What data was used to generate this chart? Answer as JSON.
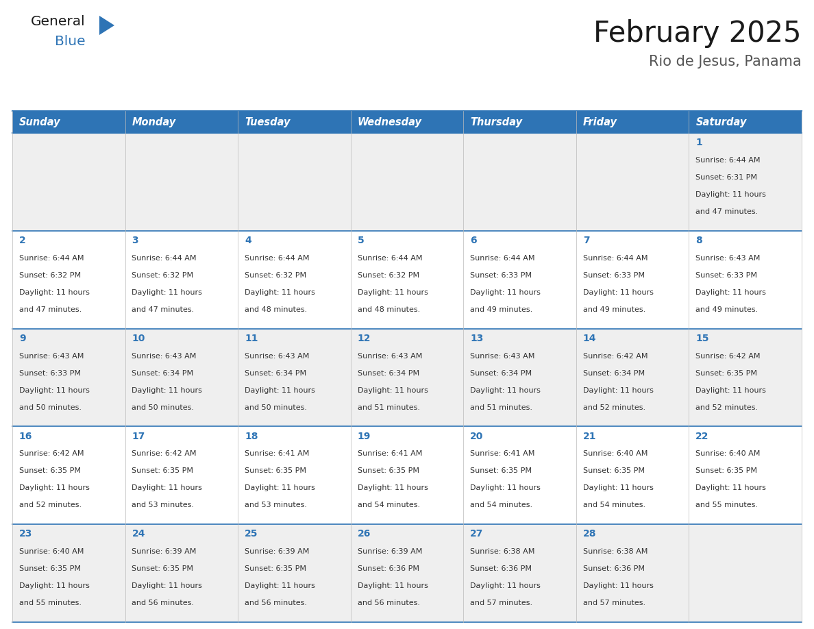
{
  "title": "February 2025",
  "subtitle": "Rio de Jesus, Panama",
  "header_bg": "#2E74B5",
  "header_text_color": "#FFFFFF",
  "day_names": [
    "Sunday",
    "Monday",
    "Tuesday",
    "Wednesday",
    "Thursday",
    "Friday",
    "Saturday"
  ],
  "alt_row_bg": "#EFEFEF",
  "white_bg": "#FFFFFF",
  "grid_line_color": "#2E74B5",
  "day_number_color": "#2E74B5",
  "info_text_color": "#333333",
  "logo_general_color": "#1A1A1A",
  "logo_blue_color": "#2E74B5",
  "calendar": [
    [
      null,
      null,
      null,
      null,
      null,
      null,
      1
    ],
    [
      2,
      3,
      4,
      5,
      6,
      7,
      8
    ],
    [
      9,
      10,
      11,
      12,
      13,
      14,
      15
    ],
    [
      16,
      17,
      18,
      19,
      20,
      21,
      22
    ],
    [
      23,
      24,
      25,
      26,
      27,
      28,
      null
    ]
  ],
  "sun_data": {
    "1": {
      "sunrise": "6:44 AM",
      "sunset": "6:31 PM",
      "daylight_hours": 11,
      "daylight_minutes": 47
    },
    "2": {
      "sunrise": "6:44 AM",
      "sunset": "6:32 PM",
      "daylight_hours": 11,
      "daylight_minutes": 47
    },
    "3": {
      "sunrise": "6:44 AM",
      "sunset": "6:32 PM",
      "daylight_hours": 11,
      "daylight_minutes": 47
    },
    "4": {
      "sunrise": "6:44 AM",
      "sunset": "6:32 PM",
      "daylight_hours": 11,
      "daylight_minutes": 48
    },
    "5": {
      "sunrise": "6:44 AM",
      "sunset": "6:32 PM",
      "daylight_hours": 11,
      "daylight_minutes": 48
    },
    "6": {
      "sunrise": "6:44 AM",
      "sunset": "6:33 PM",
      "daylight_hours": 11,
      "daylight_minutes": 49
    },
    "7": {
      "sunrise": "6:44 AM",
      "sunset": "6:33 PM",
      "daylight_hours": 11,
      "daylight_minutes": 49
    },
    "8": {
      "sunrise": "6:43 AM",
      "sunset": "6:33 PM",
      "daylight_hours": 11,
      "daylight_minutes": 49
    },
    "9": {
      "sunrise": "6:43 AM",
      "sunset": "6:33 PM",
      "daylight_hours": 11,
      "daylight_minutes": 50
    },
    "10": {
      "sunrise": "6:43 AM",
      "sunset": "6:34 PM",
      "daylight_hours": 11,
      "daylight_minutes": 50
    },
    "11": {
      "sunrise": "6:43 AM",
      "sunset": "6:34 PM",
      "daylight_hours": 11,
      "daylight_minutes": 50
    },
    "12": {
      "sunrise": "6:43 AM",
      "sunset": "6:34 PM",
      "daylight_hours": 11,
      "daylight_minutes": 51
    },
    "13": {
      "sunrise": "6:43 AM",
      "sunset": "6:34 PM",
      "daylight_hours": 11,
      "daylight_minutes": 51
    },
    "14": {
      "sunrise": "6:42 AM",
      "sunset": "6:34 PM",
      "daylight_hours": 11,
      "daylight_minutes": 52
    },
    "15": {
      "sunrise": "6:42 AM",
      "sunset": "6:35 PM",
      "daylight_hours": 11,
      "daylight_minutes": 52
    },
    "16": {
      "sunrise": "6:42 AM",
      "sunset": "6:35 PM",
      "daylight_hours": 11,
      "daylight_minutes": 52
    },
    "17": {
      "sunrise": "6:42 AM",
      "sunset": "6:35 PM",
      "daylight_hours": 11,
      "daylight_minutes": 53
    },
    "18": {
      "sunrise": "6:41 AM",
      "sunset": "6:35 PM",
      "daylight_hours": 11,
      "daylight_minutes": 53
    },
    "19": {
      "sunrise": "6:41 AM",
      "sunset": "6:35 PM",
      "daylight_hours": 11,
      "daylight_minutes": 54
    },
    "20": {
      "sunrise": "6:41 AM",
      "sunset": "6:35 PM",
      "daylight_hours": 11,
      "daylight_minutes": 54
    },
    "21": {
      "sunrise": "6:40 AM",
      "sunset": "6:35 PM",
      "daylight_hours": 11,
      "daylight_minutes": 54
    },
    "22": {
      "sunrise": "6:40 AM",
      "sunset": "6:35 PM",
      "daylight_hours": 11,
      "daylight_minutes": 55
    },
    "23": {
      "sunrise": "6:40 AM",
      "sunset": "6:35 PM",
      "daylight_hours": 11,
      "daylight_minutes": 55
    },
    "24": {
      "sunrise": "6:39 AM",
      "sunset": "6:35 PM",
      "daylight_hours": 11,
      "daylight_minutes": 56
    },
    "25": {
      "sunrise": "6:39 AM",
      "sunset": "6:35 PM",
      "daylight_hours": 11,
      "daylight_minutes": 56
    },
    "26": {
      "sunrise": "6:39 AM",
      "sunset": "6:36 PM",
      "daylight_hours": 11,
      "daylight_minutes": 56
    },
    "27": {
      "sunrise": "6:38 AM",
      "sunset": "6:36 PM",
      "daylight_hours": 11,
      "daylight_minutes": 57
    },
    "28": {
      "sunrise": "6:38 AM",
      "sunset": "6:36 PM",
      "daylight_hours": 11,
      "daylight_minutes": 57
    }
  },
  "fig_width": 11.88,
  "fig_height": 9.18,
  "dpi": 100
}
